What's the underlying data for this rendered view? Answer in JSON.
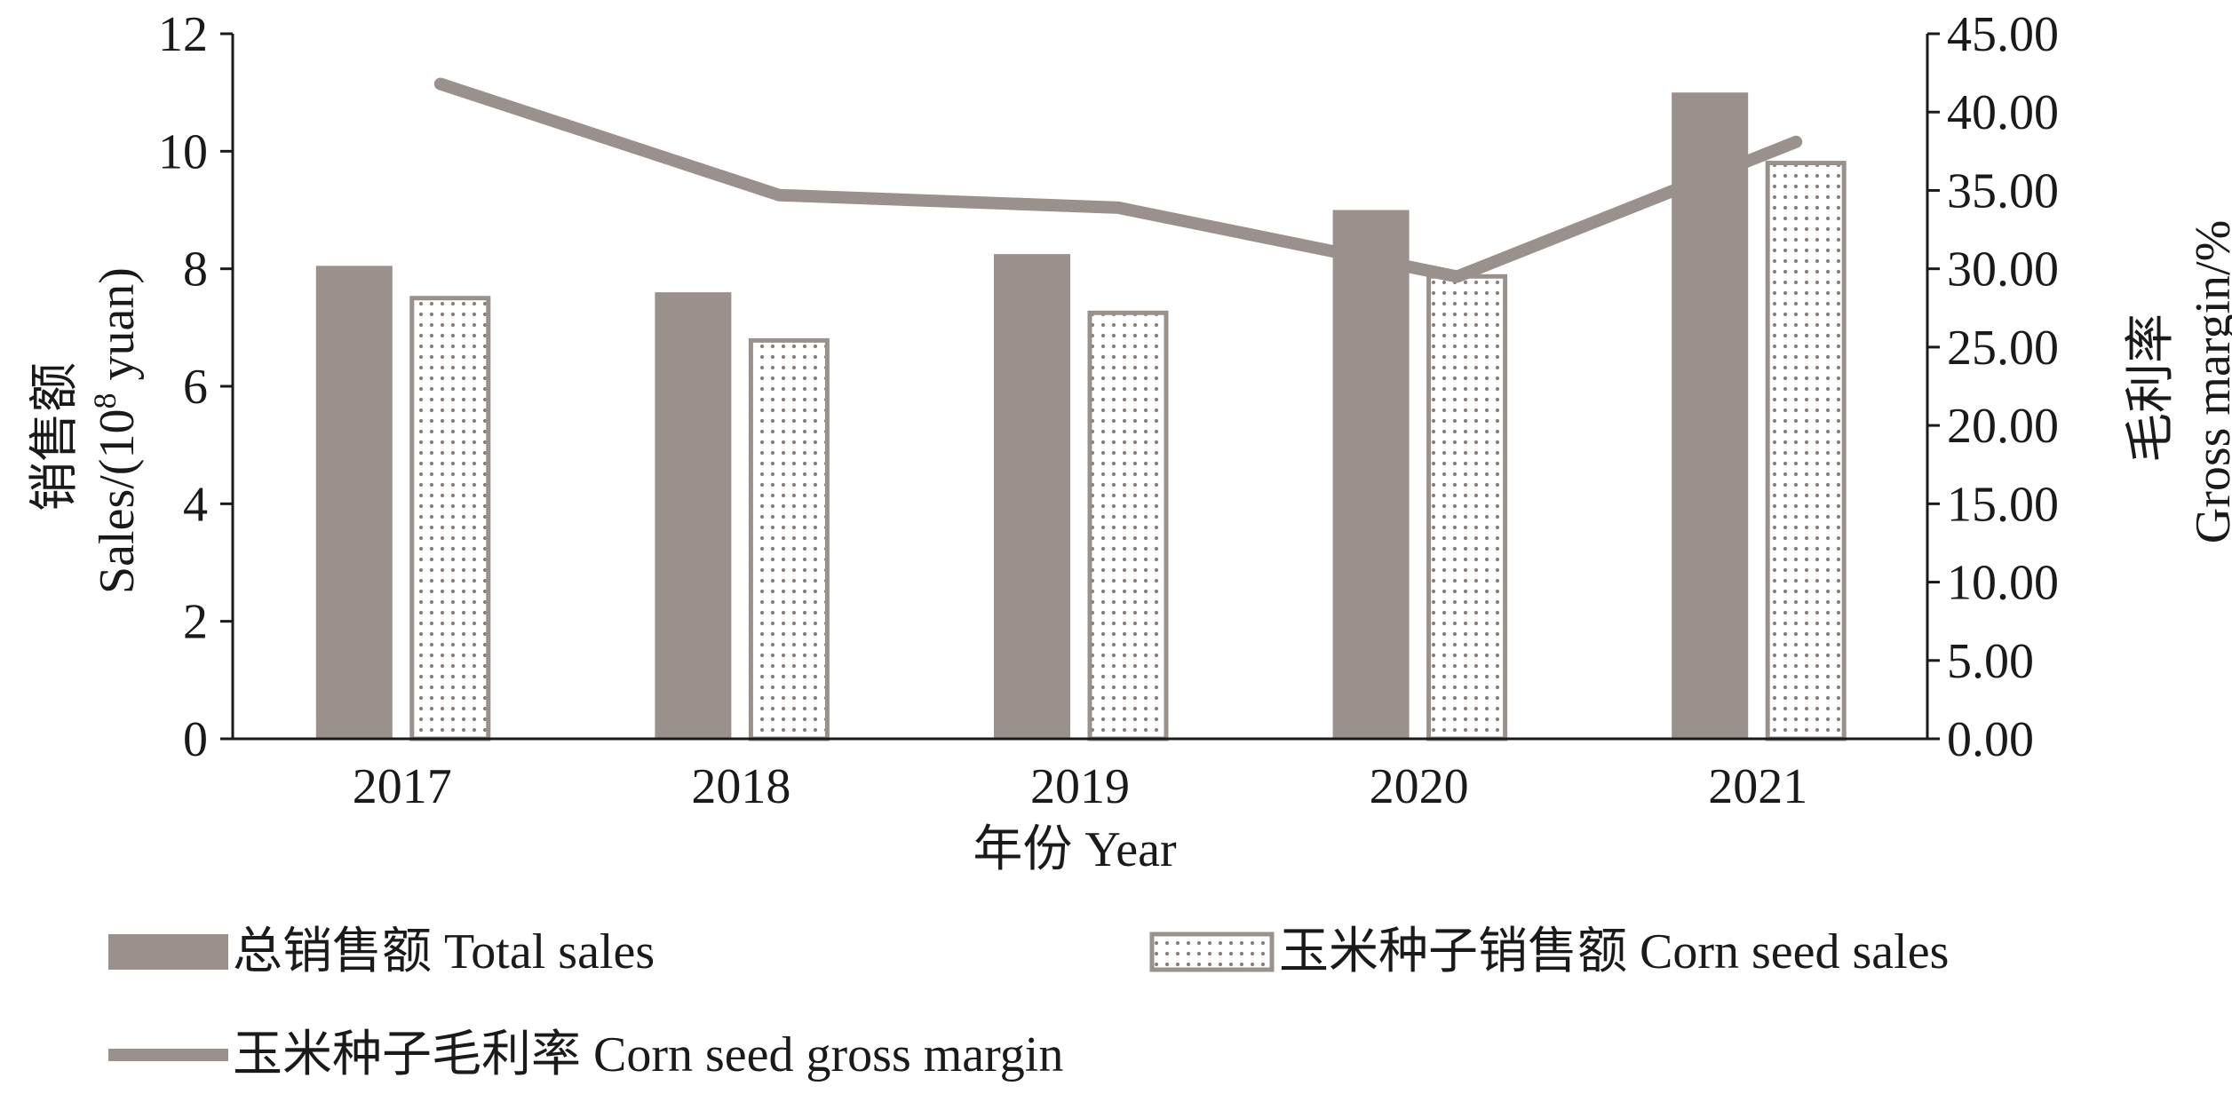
{
  "chart_data": {
    "type": "bar",
    "categories": [
      "2017",
      "2018",
      "2019",
      "2020",
      "2021"
    ],
    "series": [
      {
        "name": "总销售额 Total sales",
        "type": "bar",
        "axis": "left",
        "values": [
          8.05,
          7.6,
          8.25,
          9.0,
          11.0
        ]
      },
      {
        "name": "玉米种子销售额 Corn seed sales",
        "type": "bar",
        "axis": "left",
        "values": [
          7.5,
          6.78,
          7.25,
          7.87,
          9.8
        ]
      },
      {
        "name": "玉米种子毛利率 Corn seed gross margin",
        "type": "line",
        "axis": "right",
        "values": [
          41.8,
          34.7,
          33.9,
          29.5,
          38.1
        ]
      }
    ],
    "xlabel": "年份 Year",
    "ylabel_left": [
      "销售额",
      "Sales/(10",
      "8",
      " yuan)"
    ],
    "ylabel_right": [
      "毛利率",
      "Gross margin/%"
    ],
    "y_left": {
      "range": [
        0,
        12
      ],
      "ticks": [
        "0",
        "2",
        "4",
        "6",
        "8",
        "10",
        "12"
      ]
    },
    "y_right": {
      "range": [
        0,
        45
      ],
      "ticks": [
        "0.00",
        "5.00",
        "10.00",
        "15.00",
        "20.00",
        "25.00",
        "30.00",
        "35.00",
        "40.00",
        "45.00"
      ]
    },
    "grid": false,
    "legend_position": "bottom",
    "colors": {
      "total_sales": "#9a918d",
      "corn_seed_sales_border": "#9a918d",
      "corn_seed_sales_dots": "#8a817d",
      "gross_margin_line": "#9a918d",
      "axis": "#1a1a1a"
    }
  }
}
